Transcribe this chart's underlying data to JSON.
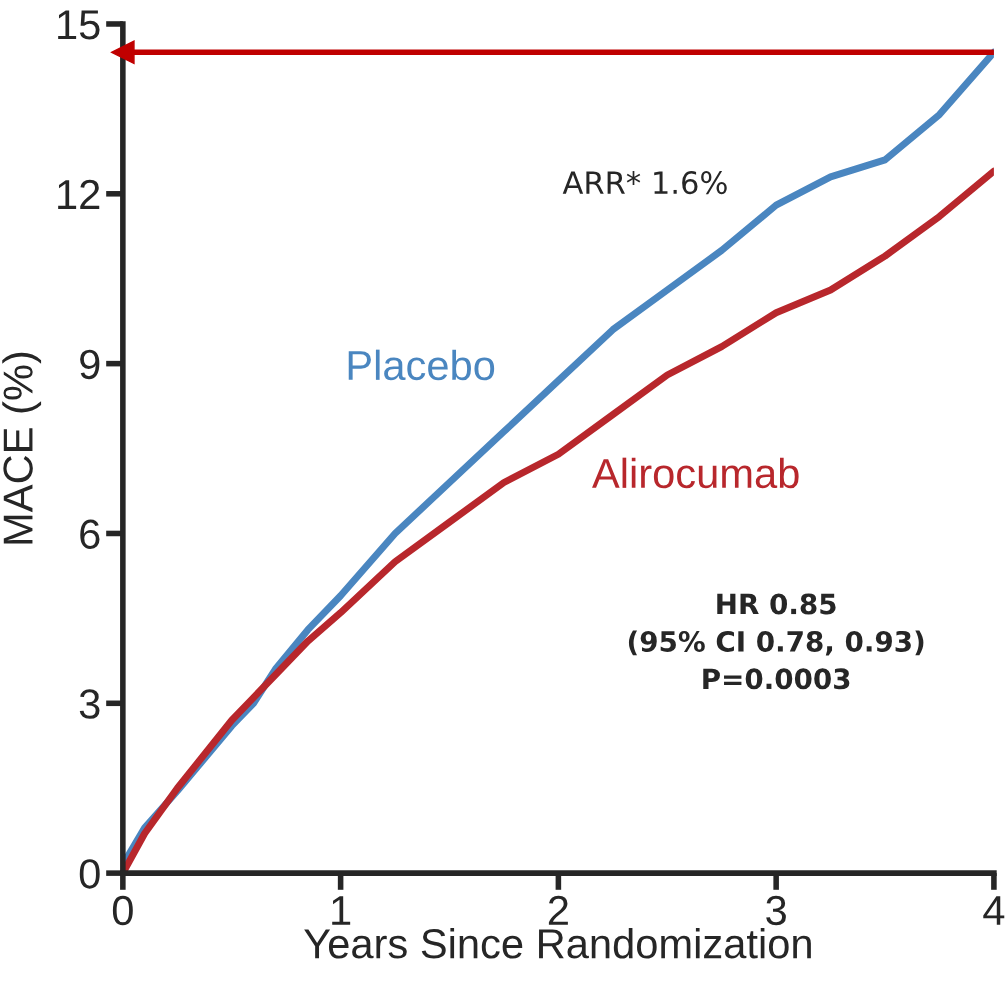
{
  "chart_data": {
    "type": "line",
    "xlabel": "Years Since Randomization",
    "ylabel": "MACE (%)",
    "xlim": [
      0,
      4
    ],
    "xticks": [
      0,
      1,
      2,
      3,
      4
    ],
    "ylim": [
      0,
      15
    ],
    "yticks": [
      0,
      3,
      6,
      9,
      12,
      15
    ],
    "grid": false,
    "legend": false,
    "x": [
      0,
      0.1,
      0.25,
      0.5,
      0.6,
      0.7,
      0.85,
      1.0,
      1.25,
      1.5,
      1.75,
      2.0,
      2.25,
      2.5,
      2.75,
      3.0,
      3.25,
      3.5,
      3.75,
      4.0
    ],
    "series": [
      {
        "name": "Placebo",
        "color": "#4a86c0",
        "values": [
          0.15,
          0.8,
          1.45,
          2.6,
          3.0,
          3.6,
          4.3,
          4.9,
          6.0,
          6.9,
          7.8,
          8.7,
          9.6,
          10.3,
          11.0,
          11.8,
          12.3,
          12.6,
          13.4,
          14.5
        ]
      },
      {
        "name": "Alirocumab",
        "color": "#b8272c",
        "values": [
          0,
          0.7,
          1.5,
          2.7,
          3.1,
          3.5,
          4.1,
          4.6,
          5.5,
          6.2,
          6.9,
          7.4,
          8.1,
          8.8,
          9.3,
          9.9,
          10.3,
          10.9,
          11.6,
          12.4
        ]
      }
    ],
    "ref_lines": [
      {
        "axis": "y",
        "value": 14.5,
        "color": "#c00000"
      }
    ],
    "annotations": [
      "ARR* 1.6%",
      "HR 0.85\n(95% CI 0.78, 0.93)\nP=0.0003"
    ]
  }
}
